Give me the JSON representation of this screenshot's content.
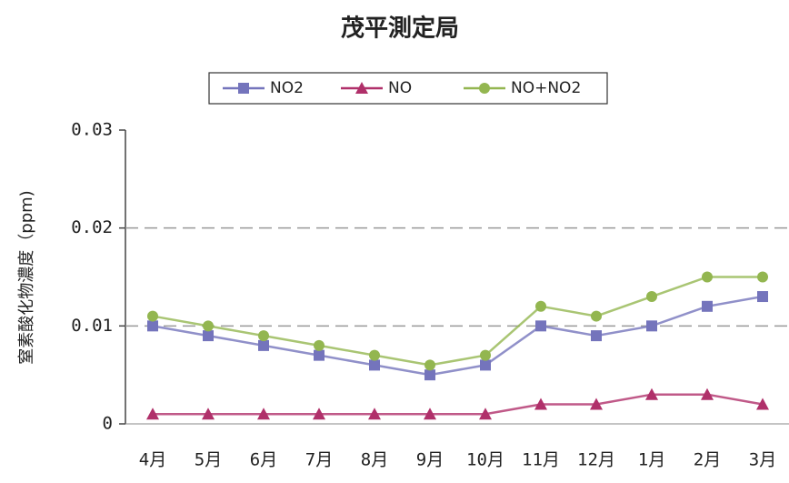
{
  "chart_data": {
    "type": "line",
    "title": "茂平測定局",
    "ylabel": "窒素酸化物濃度（ppm)",
    "categories": [
      "4月",
      "5月",
      "6月",
      "7月",
      "8月",
      "9月",
      "10月",
      "11月",
      "12月",
      "1月",
      "2月",
      "3月"
    ],
    "series": [
      {
        "name": "NO2",
        "color": "#7474bc",
        "marker": "square",
        "values": [
          0.01,
          0.009,
          0.008,
          0.007,
          0.006,
          0.005,
          0.006,
          0.01,
          0.009,
          0.01,
          0.012,
          0.013
        ]
      },
      {
        "name": "NO",
        "color": "#b0306a",
        "marker": "triangle",
        "values": [
          0.001,
          0.001,
          0.001,
          0.001,
          0.001,
          0.001,
          0.001,
          0.002,
          0.002,
          0.003,
          0.003,
          0.002
        ]
      },
      {
        "name": "NO+NO2",
        "color": "#93b650",
        "marker": "circle",
        "values": [
          0.011,
          0.01,
          0.009,
          0.008,
          0.007,
          0.006,
          0.007,
          0.012,
          0.011,
          0.013,
          0.015,
          0.015
        ]
      }
    ],
    "ylim": [
      0,
      0.03
    ],
    "yticks": [
      0,
      0.01,
      0.02,
      0.03
    ],
    "grid": true,
    "legend": "top"
  }
}
